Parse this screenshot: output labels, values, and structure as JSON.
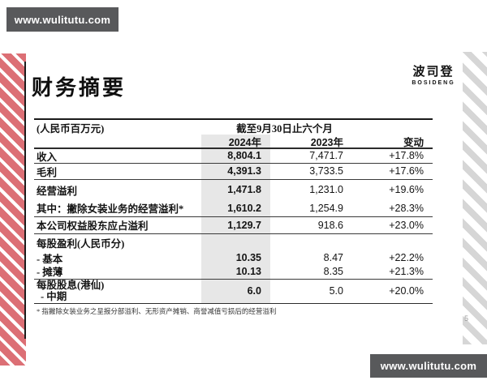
{
  "watermark": {
    "text": "www.wulitutu.com"
  },
  "logo": {
    "cn": "波司登",
    "en": "BOSIDENG"
  },
  "page": {
    "title": "财务摘要",
    "page_number": "5"
  },
  "colors": {
    "stripe_red": "#dc6f75",
    "stripe_gray": "#d6d6d6",
    "watermark_bg": "#58595b",
    "highlight_column_bg": "#e7e7e7"
  },
  "table": {
    "unit_label": "(人民币百万元)",
    "period_header": "截至9月30日止六个月",
    "columns": {
      "y2024": "2024年",
      "y2023": "2023年",
      "change": "变动"
    },
    "rows": [
      {
        "label": "收入",
        "y2024": "8,804.1",
        "y2023": "7,471.7",
        "change": "+17.8%"
      },
      {
        "label": "毛利",
        "y2024": "4,391.3",
        "y2023": "3,733.5",
        "change": "+17.6%"
      },
      {
        "label": "经营溢利",
        "y2024": "1,471.8",
        "y2023": "1,231.0",
        "change": "+19.6%"
      },
      {
        "label": "其中：撇除女装业务的经营溢利*",
        "y2024": "1,610.2",
        "y2023": "1,254.9",
        "change": "+28.3%"
      },
      {
        "label": "本公司权益股东应占溢利",
        "y2024": "1,129.7",
        "y2023": "918.6",
        "change": "+23.0%"
      },
      {
        "label": "每股盈利(人民币分)",
        "y2024": "",
        "y2023": "",
        "change": ""
      },
      {
        "label": "- 基本",
        "y2024": "10.35",
        "y2023": "8.47",
        "change": "+22.2%"
      },
      {
        "label": "- 摊薄",
        "y2024": "10.13",
        "y2023": "8.35",
        "change": "+21.3%"
      },
      {
        "label": "每股股息(港仙)",
        "label2": "- 中期",
        "y2024": "6.0",
        "y2023": "5.0",
        "change": "+20.0%"
      }
    ],
    "footnote": "* 指撇除女装业务之呈报分部溢利、无形资产摊销、商誉减值亏损后的经营溢利"
  }
}
